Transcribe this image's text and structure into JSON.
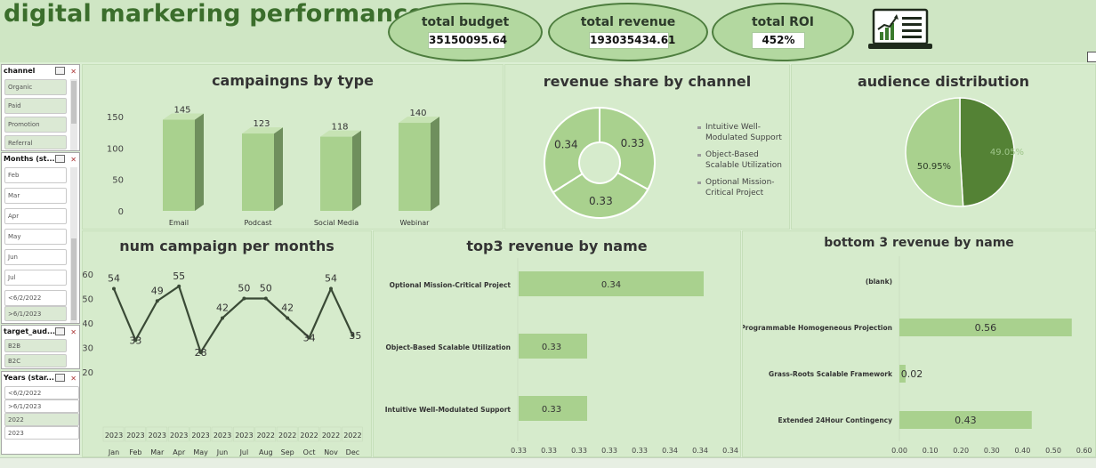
{
  "header": {
    "title": "digital markering performance",
    "kpis": [
      {
        "label": "total  budget",
        "value": "35150095.64"
      },
      {
        "label": "total  revenue",
        "value": "193035434.61"
      },
      {
        "label": "total ROI",
        "value": "452%"
      }
    ]
  },
  "slicers": {
    "channel": {
      "title": "channel",
      "items": [
        "Organic",
        "Paid",
        "Promotion",
        "Referral"
      ]
    },
    "months": {
      "title": "Months (st...",
      "items": [
        "Feb",
        "Mar",
        "Apr",
        "May",
        "Jun",
        "Jul",
        "<6/2/2022",
        ">6/1/2023"
      ]
    },
    "target": {
      "title": "target_aud...",
      "items": [
        "B2B",
        "B2C"
      ]
    },
    "years": {
      "title": "Years (star...",
      "items": [
        "<6/2/2022",
        ">6/1/2023",
        "2022",
        "2023"
      ]
    }
  },
  "panels": {
    "campaigns_by_type": "campaingns by type",
    "revenue_share": "revenue share by channel",
    "audience": "audience distribution",
    "per_month": "num campaign per months",
    "top3": "top3 revenue by name",
    "bottom3": "bottom 3 revenue by name"
  },
  "chart_data": [
    {
      "type": "bar",
      "title": "campaingns by type",
      "categories": [
        "Email",
        "Podcast",
        "Social Media",
        "Webinar"
      ],
      "values": [
        145,
        123,
        118,
        140
      ],
      "yticks": [
        "0",
        "50",
        "100",
        "150"
      ],
      "ylim": [
        0,
        150
      ],
      "color": "#a9d18e"
    },
    {
      "type": "pie",
      "donut": true,
      "title": "revenue share by channel",
      "labels": [
        "Intuitive Well-Modulated Support",
        "Object-Based Scalable Utilization",
        "Optional Mission-Critical Project"
      ],
      "legend": [
        [
          "Intuitive Well-",
          "Modulated Support"
        ],
        [
          "Object-Based",
          "Scalable Utilization"
        ],
        [
          "Optional Mission-",
          "Critical Project"
        ]
      ],
      "values": [
        0.33,
        0.33,
        0.34
      ],
      "value_labels": [
        "0.33",
        "0.33",
        "0.34"
      ],
      "color": "#a9d18e"
    },
    {
      "type": "pie",
      "title": "audience distribution",
      "values": [
        49.05,
        50.95
      ],
      "value_labels": [
        "49.05%",
        "50.95%"
      ],
      "colors": [
        "#548235",
        "#a9d18e"
      ]
    },
    {
      "type": "line",
      "title": "num campaign per months",
      "categories": [
        "Jan",
        "Feb",
        "Mar",
        "Apr",
        "May",
        "Jun",
        "Jul",
        "Aug",
        "Sep",
        "Oct",
        "Nov",
        "Dec"
      ],
      "years": [
        "2023",
        "2023",
        "2023",
        "2023",
        "2023",
        "2023",
        "2023",
        "2022",
        "2022",
        "2022",
        "2022",
        "2022"
      ],
      "values": [
        54,
        33,
        49,
        55,
        28,
        42,
        50,
        50,
        42,
        34,
        54,
        35
      ],
      "yticks": [
        "20",
        "30",
        "40",
        "50",
        "60"
      ],
      "ylim": [
        20,
        60
      ],
      "color": "#3a4a36"
    },
    {
      "type": "bar",
      "orientation": "horizontal",
      "title": "top3 revenue by name",
      "categories": [
        "Optional Mission-Critical Project",
        "Object-Based Scalable Utilization",
        "Intuitive Well-Modulated Support"
      ],
      "values": [
        0.34,
        0.33,
        0.33
      ],
      "value_labels": [
        "0.34",
        "0.33",
        "0.33"
      ],
      "xticks": [
        "0.33",
        "0.33",
        "0.33",
        "0.33",
        "0.33",
        "0.34",
        "0.34",
        "0.34"
      ],
      "color": "#a9d18e"
    },
    {
      "type": "bar",
      "orientation": "horizontal",
      "title": "bottom 3 revenue by name",
      "categories": [
        "(blank)",
        "Programmable Homogeneous Projection",
        "Grass-Roots Scalable Framework",
        "Extended 24Hour Contingency"
      ],
      "values": [
        0,
        0.56,
        0.02,
        0.43
      ],
      "value_labels": [
        "",
        "0.56",
        "0.02",
        "0.43"
      ],
      "xticks": [
        "0.00",
        "0.10",
        "0.20",
        "0.30",
        "0.40",
        "0.50",
        "0.60"
      ],
      "xlim": [
        0,
        0.6
      ],
      "color": "#a9d18e"
    }
  ]
}
